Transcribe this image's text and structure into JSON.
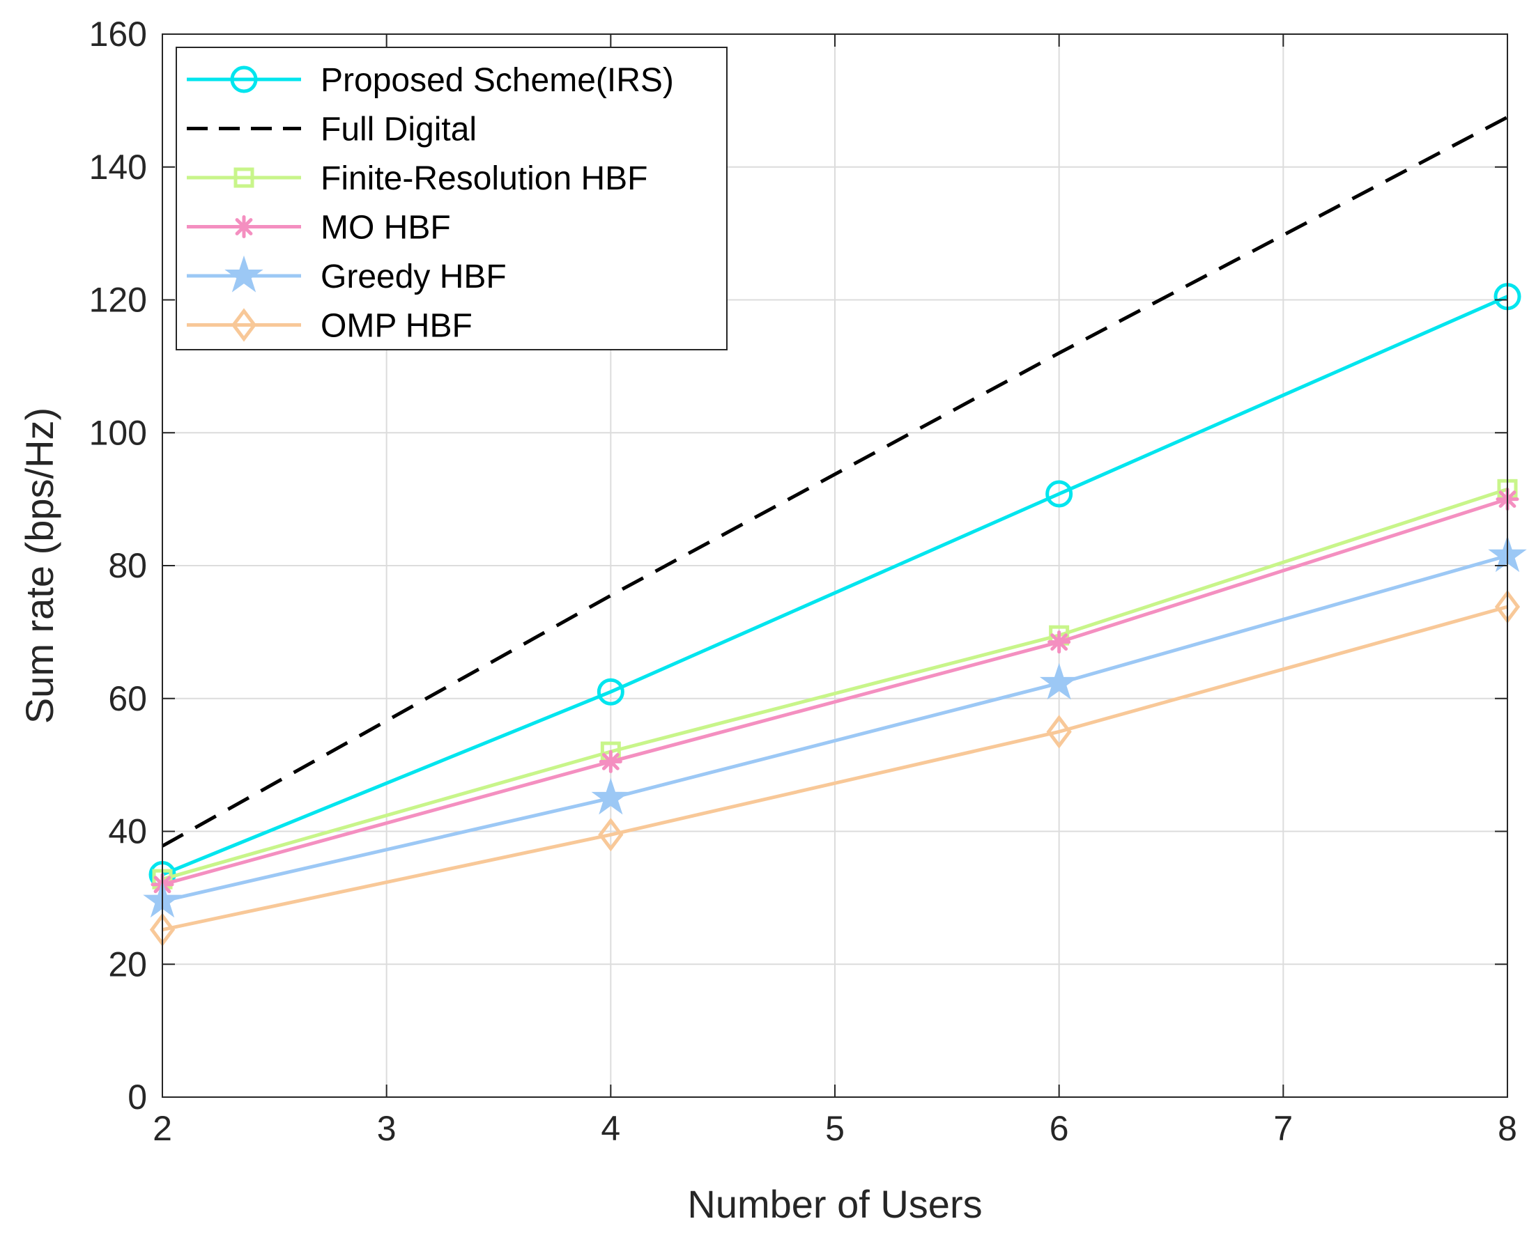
{
  "chart_data": {
    "type": "line",
    "title": "",
    "xlabel": "Number of Users",
    "ylabel": "Sum rate (bps/Hz)",
    "xlim": [
      2,
      8
    ],
    "ylim": [
      0,
      160
    ],
    "xticks": [
      2,
      3,
      4,
      5,
      6,
      7,
      8
    ],
    "yticks": [
      0,
      20,
      40,
      60,
      80,
      100,
      120,
      140,
      160
    ],
    "grid": true,
    "legend_position": "top-left",
    "series": [
      {
        "name": "Proposed Scheme(IRS)",
        "x": [
          2,
          4,
          6,
          8
        ],
        "values": [
          33.5,
          61,
          90.8,
          120.5
        ],
        "color": "#00E5EE",
        "dash": "solid",
        "marker": "circle"
      },
      {
        "name": "Full Digital",
        "x": [
          2,
          4,
          6,
          8
        ],
        "values": [
          37.8,
          75.5,
          112,
          147.5
        ],
        "color": "#000000",
        "dash": "dashed",
        "marker": "none"
      },
      {
        "name": "Finite-Resolution HBF",
        "x": [
          2,
          4,
          6,
          8
        ],
        "values": [
          32.8,
          52,
          69.5,
          91.5
        ],
        "color": "#C8F58A",
        "dash": "solid",
        "marker": "square"
      },
      {
        "name": "MO HBF",
        "x": [
          2,
          4,
          6,
          8
        ],
        "values": [
          32,
          50.5,
          68.5,
          90
        ],
        "color": "#F48FC0",
        "dash": "solid",
        "marker": "asterisk"
      },
      {
        "name": "Greedy HBF",
        "x": [
          2,
          4,
          6,
          8
        ],
        "values": [
          29.5,
          45,
          62.3,
          81.5
        ],
        "color": "#9CC8F5",
        "dash": "solid",
        "marker": "star"
      },
      {
        "name": "OMP HBF",
        "x": [
          2,
          4,
          6,
          8
        ],
        "values": [
          25.2,
          39.5,
          55,
          73.8
        ],
        "color": "#F8C898",
        "dash": "solid",
        "marker": "diamond"
      }
    ]
  }
}
